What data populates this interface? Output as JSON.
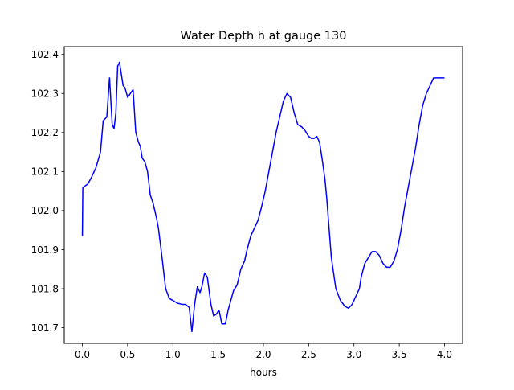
{
  "chart_data": {
    "type": "line",
    "title": "Water Depth h at gauge 130",
    "xlabel": "hours",
    "ylabel": "",
    "xlim": [
      -0.2,
      4.2
    ],
    "ylim": [
      101.66,
      102.42
    ],
    "xticks": [
      0.0,
      0.5,
      1.0,
      1.5,
      2.0,
      2.5,
      3.0,
      3.5,
      4.0
    ],
    "xtick_labels": [
      "0.0",
      "0.5",
      "1.0",
      "1.5",
      "2.0",
      "2.5",
      "3.0",
      "3.5",
      "4.0"
    ],
    "yticks": [
      101.7,
      101.8,
      101.9,
      102.0,
      102.1,
      102.2,
      102.3,
      102.4
    ],
    "ytick_labels": [
      "101.7",
      "101.8",
      "101.9",
      "102.0",
      "102.1",
      "102.2",
      "102.3",
      "102.4"
    ],
    "grid": false,
    "line_color": "#0000ff",
    "series": [
      {
        "x": [
          0.0,
          0.005,
          0.01,
          0.06,
          0.1,
          0.15,
          0.2,
          0.23,
          0.27,
          0.3,
          0.33,
          0.35,
          0.37,
          0.39,
          0.41,
          0.43,
          0.45,
          0.47,
          0.5,
          0.53,
          0.56,
          0.59,
          0.62,
          0.64,
          0.66,
          0.69,
          0.72,
          0.75,
          0.78,
          0.8,
          0.82,
          0.84,
          0.88,
          0.92,
          0.96,
          1.0,
          1.05,
          1.1,
          1.14,
          1.18,
          1.21,
          1.24,
          1.27,
          1.3,
          1.32,
          1.35,
          1.38,
          1.42,
          1.45,
          1.48,
          1.51,
          1.54,
          1.58,
          1.61,
          1.64,
          1.67,
          1.71,
          1.75,
          1.79,
          1.82,
          1.86,
          1.9,
          1.94,
          1.98,
          2.02,
          2.06,
          2.1,
          2.14,
          2.18,
          2.22,
          2.26,
          2.3,
          2.34,
          2.38,
          2.42,
          2.46,
          2.5,
          2.53,
          2.56,
          2.59,
          2.62,
          2.65,
          2.68,
          2.7,
          2.72,
          2.75,
          2.8,
          2.85,
          2.9,
          2.94,
          2.98,
          3.02,
          3.06,
          3.08,
          3.12,
          3.16,
          3.2,
          3.24,
          3.28,
          3.32,
          3.36,
          3.4,
          3.44,
          3.48,
          3.52,
          3.56,
          3.6,
          3.64,
          3.68,
          3.72,
          3.76,
          3.8,
          3.84,
          3.88,
          3.92,
          3.96,
          4.0
        ],
        "y": [
          101.935,
          102.06,
          102.06,
          102.068,
          102.085,
          102.11,
          102.15,
          102.23,
          102.24,
          102.34,
          102.22,
          102.21,
          102.25,
          102.37,
          102.38,
          102.35,
          102.32,
          102.315,
          102.29,
          102.3,
          102.31,
          102.2,
          102.175,
          102.165,
          102.135,
          102.125,
          102.1,
          102.04,
          102.02,
          102.0,
          101.98,
          101.955,
          101.88,
          101.8,
          101.775,
          101.77,
          101.763,
          101.76,
          101.76,
          101.752,
          101.69,
          101.76,
          101.805,
          101.79,
          101.805,
          101.84,
          101.83,
          101.76,
          101.73,
          101.735,
          101.745,
          101.71,
          101.71,
          101.745,
          101.77,
          101.795,
          101.81,
          101.85,
          101.87,
          101.9,
          101.935,
          101.955,
          101.975,
          102.01,
          102.05,
          102.1,
          102.15,
          102.2,
          102.24,
          102.28,
          102.3,
          102.29,
          102.25,
          102.22,
          102.215,
          102.205,
          102.19,
          102.185,
          102.185,
          102.19,
          102.175,
          102.13,
          102.08,
          102.03,
          101.97,
          101.88,
          101.8,
          101.77,
          101.755,
          101.75,
          101.76,
          101.78,
          101.8,
          101.83,
          101.865,
          101.88,
          101.895,
          101.895,
          101.885,
          101.865,
          101.855,
          101.855,
          101.87,
          101.9,
          101.95,
          102.01,
          102.06,
          102.11,
          102.16,
          102.22,
          102.27,
          102.3,
          102.32,
          102.34,
          102.34,
          102.34,
          102.34
        ]
      }
    ]
  }
}
